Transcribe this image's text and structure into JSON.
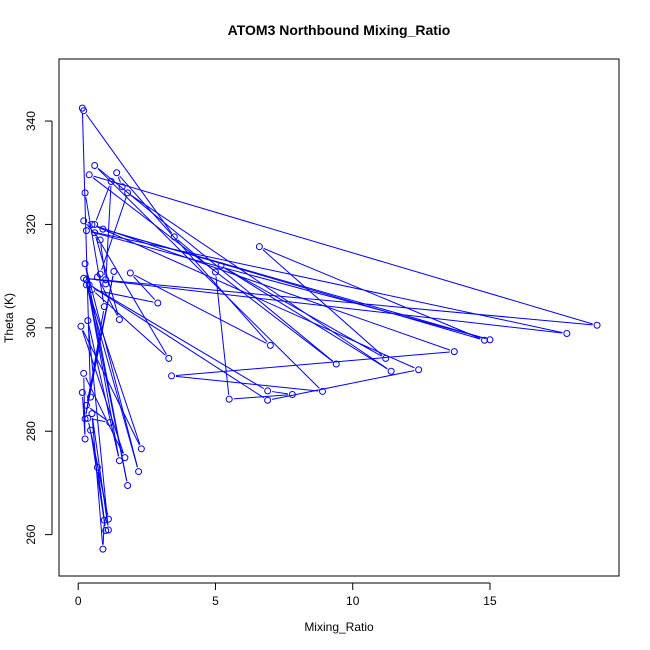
{
  "chart_data": {
    "type": "line",
    "title": "ATOM3 Northbound Mixing_Ratio",
    "xlabel": "Mixing_Ratio",
    "ylabel": "Theta (K)",
    "xlim": [
      -0.7,
      19.7
    ],
    "ylim": [
      252,
      352
    ],
    "xticks": [
      0,
      5,
      10,
      15
    ],
    "yticks": [
      260,
      280,
      300,
      320,
      340
    ],
    "grid": false,
    "legend": "none",
    "marker": "open-circle",
    "color": "#0000ff",
    "series": [
      {
        "x": [
          0.15,
          0.45,
          0.15,
          0.25,
          0.2,
          1.7,
          0.1,
          2.3,
          0.3,
          2.2,
          0.25,
          1.8,
          0.3,
          1.5,
          0.35,
          1.1,
          0.5,
          0.9,
          0.95,
          0.7,
          1.0,
          0.45,
          1.1,
          0.35,
          1.15,
          0.3,
          1.3,
          0.25,
          0.95,
          0.25
        ],
        "y": [
          342.5,
          286.6,
          287.5,
          278.5,
          291.2,
          274.9,
          300.3,
          276.6,
          308.3,
          272.2,
          312.4,
          269.5,
          309.3,
          274.3,
          301.4,
          260.9,
          283.4,
          257.2,
          262.8,
          273.0,
          260.8,
          280.2,
          263.0,
          282.5,
          281.7,
          285.0,
          310.9,
          282.4,
          304.1,
          326.1
        ]
      },
      {
        "x": [
          0.2,
          3.5,
          5.0,
          5.5,
          7.8,
          6.9,
          0.4,
          6.9,
          12.4,
          0.5,
          13.7,
          3.4,
          8.9,
          0.6,
          9.4,
          0.4,
          18.9,
          0.2,
          17.8,
          0.3,
          15.0,
          0.9,
          14.8,
          6.6,
          11.2,
          5.2,
          11.4,
          1.8,
          0.8
        ],
        "y": [
          342.0,
          317.6,
          310.8,
          286.2,
          287.1,
          287.8,
          308.3,
          286.0,
          291.9,
          320.0,
          295.4,
          290.7,
          287.7,
          331.4,
          293.0,
          329.6,
          300.5,
          309.6,
          298.9,
          318.8,
          297.7,
          319.1,
          297.6,
          315.7,
          294.1,
          312.0,
          291.6,
          326.1,
          310.4
        ]
      },
      {
        "x": [
          1.6,
          1.4,
          7.0,
          1.9,
          2.9,
          0.5,
          3.3,
          0.6,
          1.5,
          0.7,
          1.0,
          1.2,
          0.6,
          0.2,
          0.8,
          1.0
        ],
        "y": [
          327.3,
          330.0,
          296.6,
          310.6,
          304.8,
          307.4,
          294.1,
          318.4,
          301.6,
          309.8,
          308.5,
          328.3,
          320.0,
          320.7,
          317.0,
          309.3
        ]
      }
    ]
  }
}
